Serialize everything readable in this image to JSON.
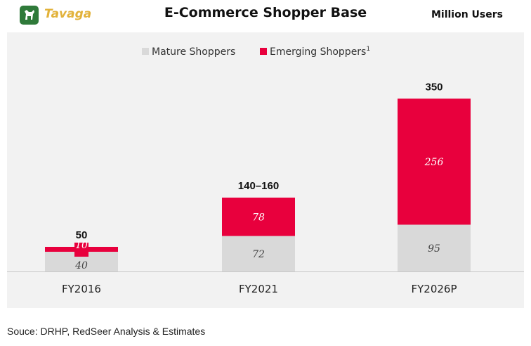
{
  "header": {
    "brand": "Tavaga",
    "title": "E-Commerce Shopper Base",
    "units": "Million Users"
  },
  "source": "Souce: DRHP, RedSeer Analysis & Estimates",
  "colors": {
    "mature": "#d9d9d9",
    "emerging": "#e8003d",
    "panel": "#f2f2f2",
    "brand_green": "#2f7a3a",
    "brand_gold": "#e2b23a"
  },
  "chart_data": {
    "type": "bar",
    "stacked": true,
    "title": "E-Commerce Shopper Base",
    "ylabel": "Million Users",
    "categories": [
      "FY2016",
      "FY2021",
      "FY2026P"
    ],
    "series": [
      {
        "name": "Mature Shoppers",
        "values": [
          40,
          72,
          95
        ],
        "color": "#d9d9d9"
      },
      {
        "name": "Emerging Shoppers",
        "values": [
          10,
          78,
          256
        ],
        "color": "#e8003d"
      }
    ],
    "legend": [
      {
        "label": "Mature Shoppers",
        "color": "#d9d9d9"
      },
      {
        "label": "Emerging Shoppers",
        "sup": "1",
        "color": "#e8003d"
      }
    ],
    "totals": [
      "50",
      "140–160",
      "350"
    ],
    "ylim": [
      0,
      350
    ],
    "grid": false,
    "legend_position": "top-center"
  }
}
